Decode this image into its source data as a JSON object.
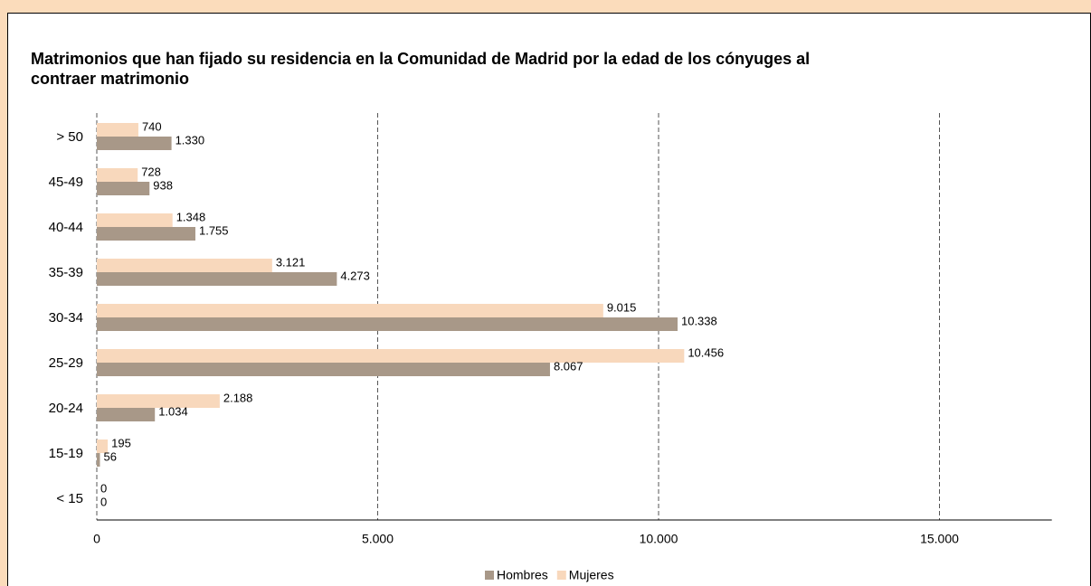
{
  "chart_data": {
    "type": "hbar",
    "title": "Matrimonios que han fijado su residencia en la Comunidad de Madrid por la edad de los cónyuges al contraer matrimonio",
    "categories": [
      "> 50",
      "45-49",
      "40-44",
      "35-39",
      "30-34",
      "25-29",
      "20-24",
      "15-19",
      "< 15"
    ],
    "series": [
      {
        "name": "Hombres",
        "color": "#a89888",
        "values": [
          1330,
          938,
          1755,
          4273,
          10338,
          8067,
          1034,
          56,
          0
        ],
        "value_labels": [
          "1.330",
          "938",
          "1.755",
          "4.273",
          "10.338",
          "8.067",
          "1.034",
          "56",
          "0"
        ]
      },
      {
        "name": "Mujeres",
        "color": "#f8d8bc",
        "values": [
          740,
          728,
          1348,
          3121,
          9015,
          10456,
          2188,
          195,
          0
        ],
        "value_labels": [
          "740",
          "728",
          "1.348",
          "3.121",
          "9.015",
          "10.456",
          "2.188",
          "195",
          "0"
        ]
      }
    ],
    "xlim": [
      0,
      17000
    ],
    "xticks": [
      0,
      {
        "value": 5000,
        "label": "5.000"
      },
      {
        "value": 10000,
        "label": "10.000"
      },
      {
        "value": 15000,
        "label": "15.000"
      }
    ],
    "grid": true,
    "legend": "bottom"
  }
}
